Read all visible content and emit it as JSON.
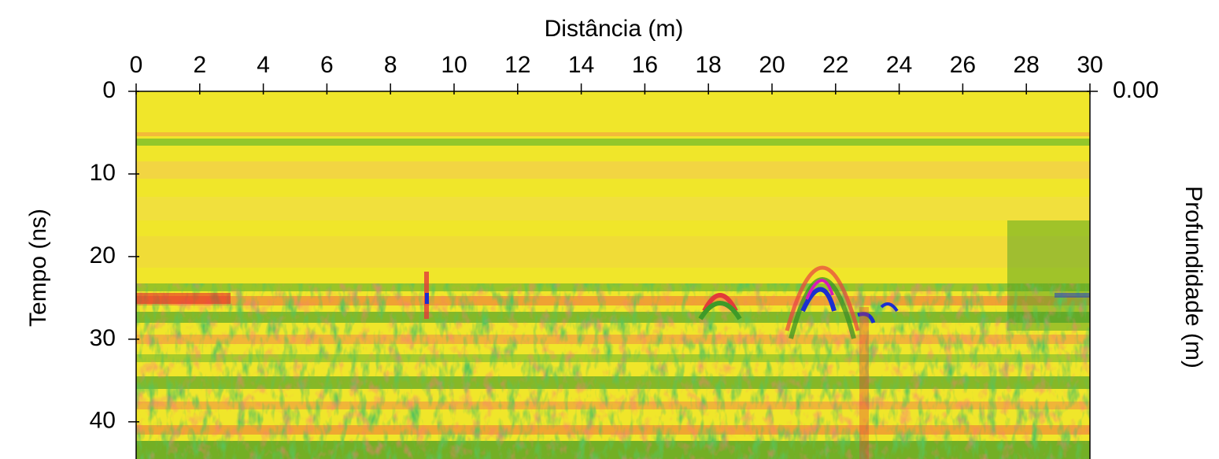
{
  "chart_data": {
    "type": "radargram",
    "title": "Distância (m)",
    "y_label": "Tempo (ns)",
    "y2_label": "Profundidade (m)",
    "xlim": [
      0,
      30
    ],
    "xticks": [
      0,
      2,
      4,
      6,
      8,
      10,
      12,
      14,
      16,
      18,
      20,
      22,
      24,
      26,
      28,
      30
    ],
    "ylim": [
      0,
      44.5
    ],
    "yticks": [
      0,
      10,
      20,
      30,
      40
    ],
    "y2lim": [
      0,
      2.23
    ],
    "y2ticks": [
      {
        "value": 0,
        "label": "0.00"
      }
    ]
  }
}
